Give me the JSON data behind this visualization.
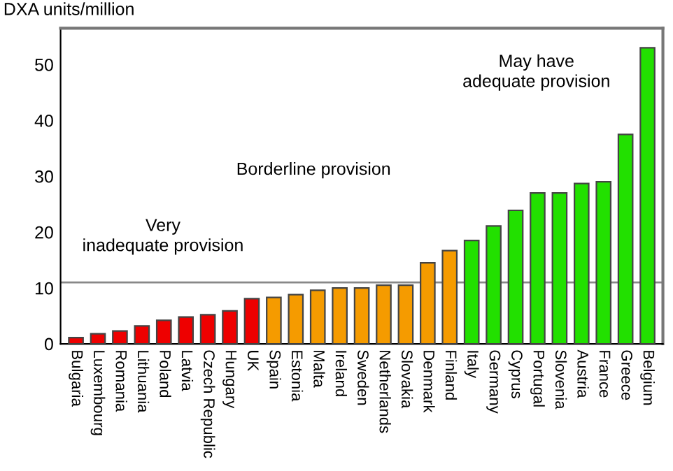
{
  "chart_data": {
    "type": "bar",
    "ylabel": "DXA units/million",
    "categories": [
      "Bulgaria",
      "Luxembourg",
      "Romania",
      "Lithuania",
      "Poland",
      "Latvia",
      "Czech Republic",
      "Hungary",
      "UK",
      "Spain",
      "Estonia",
      "Malta",
      "Ireland",
      "Sweden",
      "Netherlands",
      "Slovakia",
      "Denmark",
      "Finland",
      "Italy",
      "Germany",
      "Cyprus",
      "Portugal",
      "Slovenia",
      "Austria",
      "France",
      "Greece",
      "Belgium"
    ],
    "values": [
      1.1,
      1.8,
      2.3,
      3.2,
      4.2,
      4.8,
      5.2,
      5.9,
      8.1,
      8.3,
      8.8,
      9.6,
      10.0,
      10.0,
      10.5,
      10.5,
      14.5,
      16.7,
      18.5,
      21.1,
      23.9,
      27.0,
      27.0,
      28.7,
      29.0,
      37.5,
      53.0
    ],
    "colors": [
      "#ee0000",
      "#ee0000",
      "#ee0000",
      "#ee0000",
      "#ee0000",
      "#ee0000",
      "#ee0000",
      "#ee0000",
      "#ee0000",
      "#f59b00",
      "#f59b00",
      "#f59b00",
      "#f59b00",
      "#f59b00",
      "#f59b00",
      "#f59b00",
      "#f59b00",
      "#f59b00",
      "#22e000",
      "#22e000",
      "#22e000",
      "#22e000",
      "#22e000",
      "#22e000",
      "#22e000",
      "#22e000",
      "#22e000"
    ],
    "ylim": [
      0,
      56.5
    ],
    "yticks": [
      0,
      10,
      20,
      30,
      40,
      50
    ],
    "grid": false,
    "legend": false,
    "ref_lines": [
      {
        "axis": "y",
        "value": 11,
        "color": "#888888"
      }
    ],
    "annotations": [
      "Very\ninadequate provision",
      "Borderline provision",
      "May have\nadequate provision"
    ]
  }
}
